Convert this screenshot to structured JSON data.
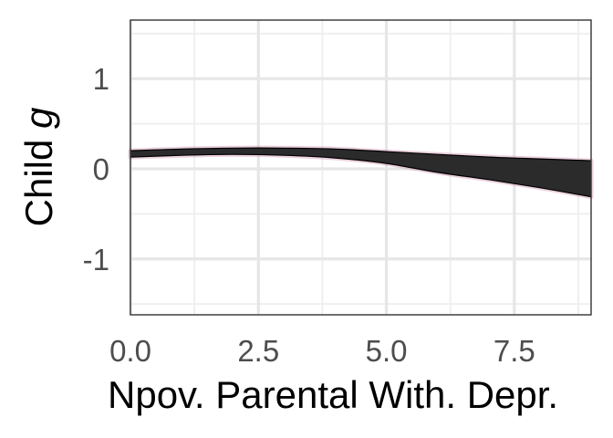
{
  "chart_data": {
    "type": "area",
    "xlabel": "Npov. Parental With. Depr.",
    "ylabel_prefix": "Child ",
    "ylabel_var": "g",
    "xlim": [
      0,
      9
    ],
    "ylim": [
      -1.62,
      1.65
    ],
    "x_ticks": [
      0,
      2.5,
      5,
      7.5
    ],
    "x_tick_labels": [
      "0.0",
      "2.5",
      "5.0",
      "7.5"
    ],
    "y_ticks": [
      -1,
      0,
      1
    ],
    "y_tick_labels": [
      "-1",
      "0",
      "1"
    ],
    "grid": true,
    "band": {
      "x": [
        0,
        1,
        2,
        3,
        4,
        5,
        6,
        7,
        8,
        9
      ],
      "upper": [
        0.2,
        0.22,
        0.23,
        0.23,
        0.22,
        0.19,
        0.16,
        0.13,
        0.11,
        0.09
      ],
      "lower": [
        0.13,
        0.15,
        0.16,
        0.15,
        0.12,
        0.06,
        -0.04,
        -0.12,
        -0.21,
        -0.31
      ]
    },
    "colors": {
      "band": "#2b2b2b",
      "halo": "#c2789f",
      "edge": "#000000"
    }
  }
}
